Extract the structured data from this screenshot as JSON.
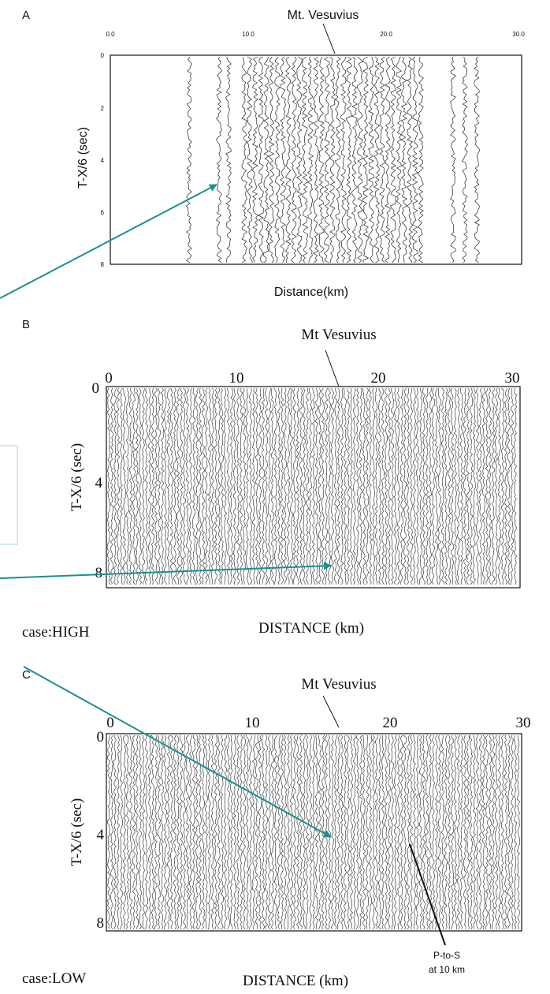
{
  "panels": [
    {
      "letter": "A",
      "landmark": "Mt. Vesuvius",
      "y_label": "T-X/6 (sec)",
      "x_label": "Distance(km)",
      "x_ticks": [
        "0.0",
        "10.0",
        "20.0",
        "30.0"
      ],
      "y_ticks": [
        "0",
        "2",
        "4",
        "6",
        "8"
      ]
    },
    {
      "letter": "B",
      "landmark": "Mt Vesuvius",
      "y_label": "T-X/6 (sec)",
      "x_label": "DISTANCE (km)",
      "x_ticks": [
        "0",
        "10",
        "20",
        "30"
      ],
      "y_ticks": [
        "0",
        "4",
        "8"
      ],
      "case": "case:HIGH"
    },
    {
      "letter": "C",
      "landmark": "Mt Vesuvius",
      "y_label": "T-X/6 (sec)",
      "x_label": "DISTANCE (km)",
      "x_ticks": [
        "0",
        "10",
        "20",
        "30"
      ],
      "y_ticks": [
        "0",
        "4",
        "8"
      ],
      "case": "case:LOW",
      "annotation": [
        "P-to-S",
        "at 10 km"
      ]
    }
  ]
}
